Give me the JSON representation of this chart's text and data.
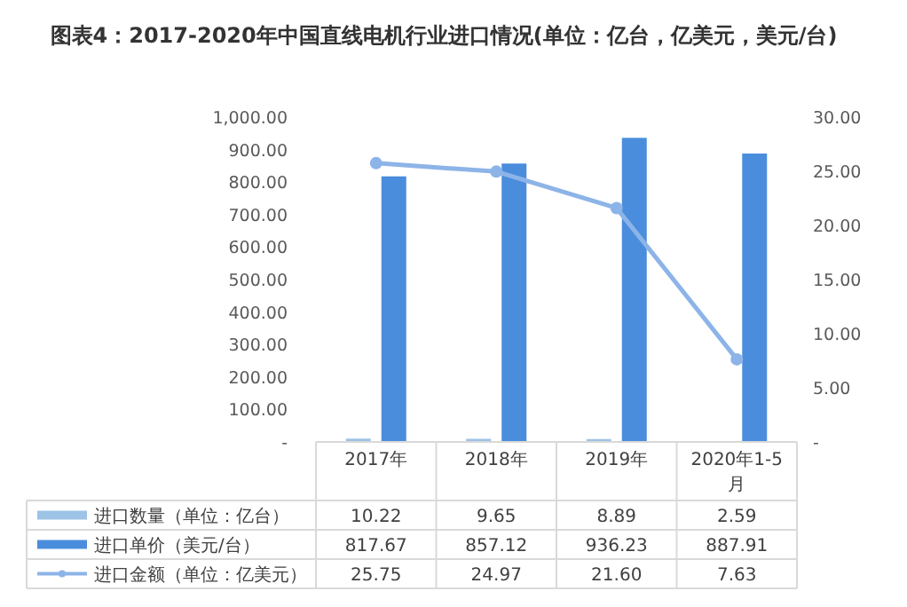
{
  "chart_data": {
    "type": "bar",
    "title": "图表4：2017-2020年中国直线电机行业进口情况(单位：亿台，亿美元，美元/台)",
    "categories": [
      "2017年",
      "2018年",
      "2019年",
      "2020年1-5月"
    ],
    "series": [
      {
        "name": "进口数量（单位：亿台）",
        "color": "#9dc3e6",
        "values": [
          10.22,
          9.65,
          8.89,
          2.59
        ],
        "value_labels": [
          "10.22",
          "9.65",
          "8.89",
          "2.59"
        ]
      },
      {
        "name": "进口单价（美元/台）",
        "color": "#4a8ddc",
        "values": [
          817.67,
          857.12,
          936.23,
          887.91
        ],
        "value_labels": [
          "817.67",
          "857.12",
          "936.23",
          "887.91"
        ]
      },
      {
        "name": "进口金额（单位：亿美元）",
        "type": "line",
        "axis": "y2",
        "marker": "circle",
        "color": "#8db4e8",
        "values": [
          25.75,
          24.97,
          21.6,
          7.63
        ],
        "value_labels": [
          "25.75",
          "24.97",
          "21.60",
          "7.63"
        ]
      }
    ],
    "ylim": [
      0,
      1000
    ],
    "yticks": [
      {
        "value": 0,
        "label": "-"
      },
      {
        "value": 100,
        "label": "100.00"
      },
      {
        "value": 200,
        "label": "200.00"
      },
      {
        "value": 300,
        "label": "300.00"
      },
      {
        "value": 400,
        "label": "400.00"
      },
      {
        "value": 500,
        "label": "500.00"
      },
      {
        "value": 600,
        "label": "600.00"
      },
      {
        "value": 700,
        "label": "700.00"
      },
      {
        "value": 800,
        "label": "800.00"
      },
      {
        "value": 900,
        "label": "900.00"
      },
      {
        "value": 1000,
        "label": "1,000.00"
      }
    ],
    "y2lim": [
      0,
      30
    ],
    "y2ticks": [
      {
        "value": 0,
        "label": "-"
      },
      {
        "value": 5,
        "label": "5.00"
      },
      {
        "value": 10,
        "label": "10.00"
      },
      {
        "value": 15,
        "label": "15.00"
      },
      {
        "value": 20,
        "label": "20.00"
      },
      {
        "value": 25,
        "label": "25.00"
      },
      {
        "value": 30,
        "label": "30.00"
      }
    ],
    "legend": "bottom left"
  }
}
